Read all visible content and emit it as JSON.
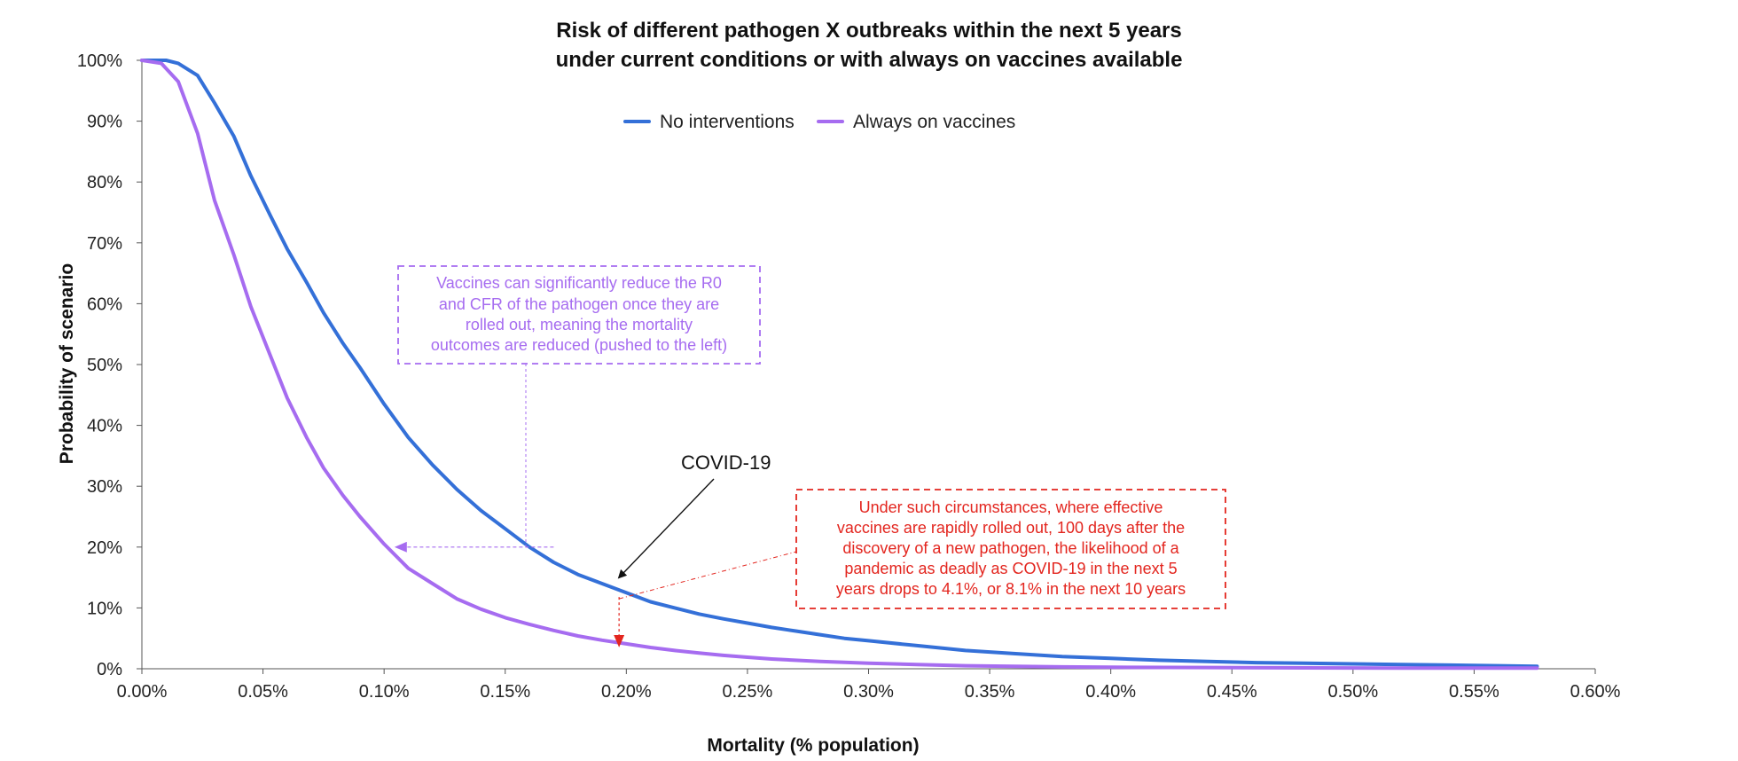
{
  "chart_data": {
    "type": "line",
    "title": [
      "Risk of different pathogen X outbreaks within the next 5 years",
      "under current conditions or with always on vaccines available"
    ],
    "xlabel": "Mortality (% population)",
    "ylabel": "Probability of scenario",
    "xlim": [
      0,
      0.6
    ],
    "ylim": [
      0,
      100
    ],
    "x_ticks": [
      0,
      0.05,
      0.1,
      0.15,
      0.2,
      0.25,
      0.3,
      0.35,
      0.4,
      0.45,
      0.5,
      0.55,
      0.6
    ],
    "x_tick_labels": [
      "0.00%",
      "0.05%",
      "0.10%",
      "0.15%",
      "0.20%",
      "0.25%",
      "0.30%",
      "0.35%",
      "0.40%",
      "0.45%",
      "0.50%",
      "0.55%",
      "0.60%"
    ],
    "y_ticks": [
      0,
      10,
      20,
      30,
      40,
      50,
      60,
      70,
      80,
      90,
      100
    ],
    "y_tick_labels": [
      "0%",
      "10%",
      "20%",
      "30%",
      "40%",
      "50%",
      "60%",
      "70%",
      "80%",
      "90%",
      "100%"
    ],
    "grid": false,
    "legend_position": "top-center",
    "series": [
      {
        "name": "No interventions",
        "color": "#3470D8",
        "x": [
          0,
          0.01,
          0.015,
          0.023,
          0.03,
          0.038,
          0.045,
          0.053,
          0.06,
          0.068,
          0.075,
          0.083,
          0.09,
          0.1,
          0.11,
          0.12,
          0.13,
          0.14,
          0.15,
          0.16,
          0.17,
          0.18,
          0.19,
          0.2,
          0.21,
          0.22,
          0.23,
          0.24,
          0.25,
          0.26,
          0.27,
          0.28,
          0.29,
          0.3,
          0.32,
          0.34,
          0.36,
          0.38,
          0.4,
          0.42,
          0.44,
          0.46,
          0.48,
          0.5,
          0.52,
          0.54,
          0.56,
          0.576
        ],
        "y": [
          100,
          100,
          99.5,
          97.5,
          93,
          87.5,
          81,
          74.5,
          69,
          63.5,
          58.5,
          53.5,
          49.5,
          43.5,
          38,
          33.5,
          29.5,
          26,
          23,
          20,
          17.5,
          15.5,
          14,
          12.5,
          11,
          10,
          9,
          8.2,
          7.5,
          6.8,
          6.2,
          5.6,
          5.0,
          4.6,
          3.8,
          3.0,
          2.5,
          2.0,
          1.7,
          1.4,
          1.2,
          1.0,
          0.9,
          0.8,
          0.7,
          0.6,
          0.5,
          0.4
        ]
      },
      {
        "name": "Always on vaccines",
        "color": "#A66CF0",
        "x": [
          0,
          0.008,
          0.015,
          0.023,
          0.03,
          0.038,
          0.045,
          0.053,
          0.06,
          0.068,
          0.075,
          0.083,
          0.09,
          0.1,
          0.11,
          0.12,
          0.13,
          0.14,
          0.15,
          0.16,
          0.17,
          0.18,
          0.19,
          0.2,
          0.21,
          0.22,
          0.23,
          0.24,
          0.25,
          0.26,
          0.28,
          0.3,
          0.32,
          0.34,
          0.36,
          0.38,
          0.4,
          0.44,
          0.48,
          0.52,
          0.56,
          0.576
        ],
        "y": [
          100,
          99.5,
          96.5,
          88,
          77,
          68,
          59.5,
          51.5,
          44.5,
          38,
          33,
          28.5,
          25,
          20.5,
          16.5,
          14,
          11.5,
          9.8,
          8.4,
          7.3,
          6.3,
          5.4,
          4.7,
          4.1,
          3.5,
          3.0,
          2.6,
          2.2,
          1.9,
          1.6,
          1.2,
          0.9,
          0.7,
          0.5,
          0.4,
          0.3,
          0.25,
          0.2,
          0.15,
          0.1,
          0.1,
          0.1
        ]
      }
    ],
    "annotations": [
      {
        "id": "covid",
        "text": "COVID-19",
        "point_x": 0.197,
        "point_y": 15,
        "color": "#111111"
      },
      {
        "id": "vaccines-note",
        "lines": [
          "Vaccines can significantly reduce the R0",
          "and CFR of the pathogen once they are",
          "rolled out, meaning the mortality",
          "outcomes are reduced (pushed to the left)"
        ],
        "color": "#A66CF0",
        "arrow_from_x": 0.17,
        "arrow_to_x": 0.105,
        "arrow_y": 20
      },
      {
        "id": "circumstances-note",
        "lines": [
          "Under such circumstances, where effective",
          "vaccines are rapidly rolled out, 100 days after the",
          "discovery of a new pathogen, the likelihood of a",
          "pandemic as deadly as COVID-19 in the next 5",
          "years drops to 4.1%, or 8.1% in the next 10 years"
        ],
        "color": "#E3261F",
        "arrow_x": 0.197,
        "arrow_from_y": 15,
        "arrow_to_y": 4.1
      }
    ]
  }
}
